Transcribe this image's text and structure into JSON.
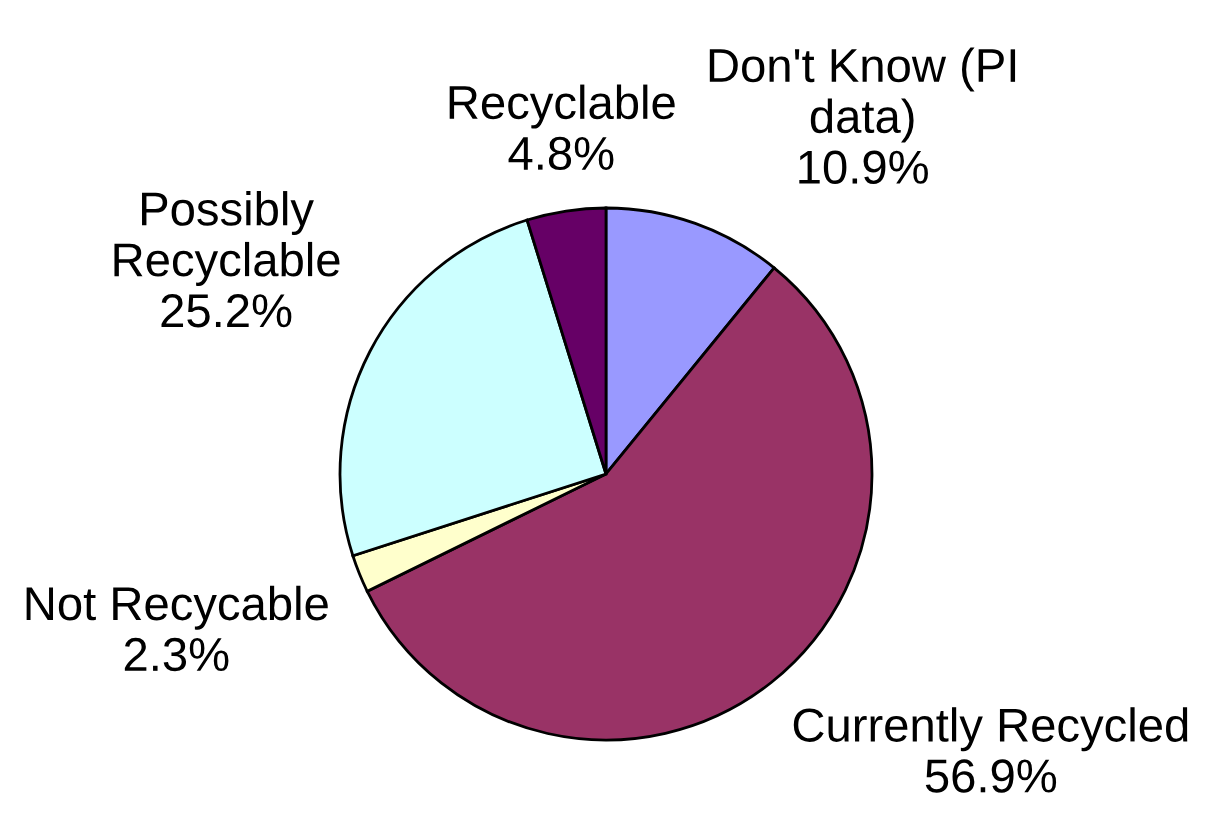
{
  "chart_data": {
    "type": "pie",
    "categories": [
      "Don't Know (PI\ndata)",
      "Currently Recycled",
      "Not Recycable",
      "Possibly\nRecyclable",
      "Recyclable"
    ],
    "values": [
      10.9,
      56.9,
      2.3,
      25.2,
      4.8
    ],
    "value_labels": [
      "10.9%",
      "56.9%",
      "2.3%",
      "25.2%",
      "4.8%"
    ],
    "colors": [
      "#9999ff",
      "#993366",
      "#ffffcc",
      "#ccffff",
      "#660066"
    ]
  }
}
